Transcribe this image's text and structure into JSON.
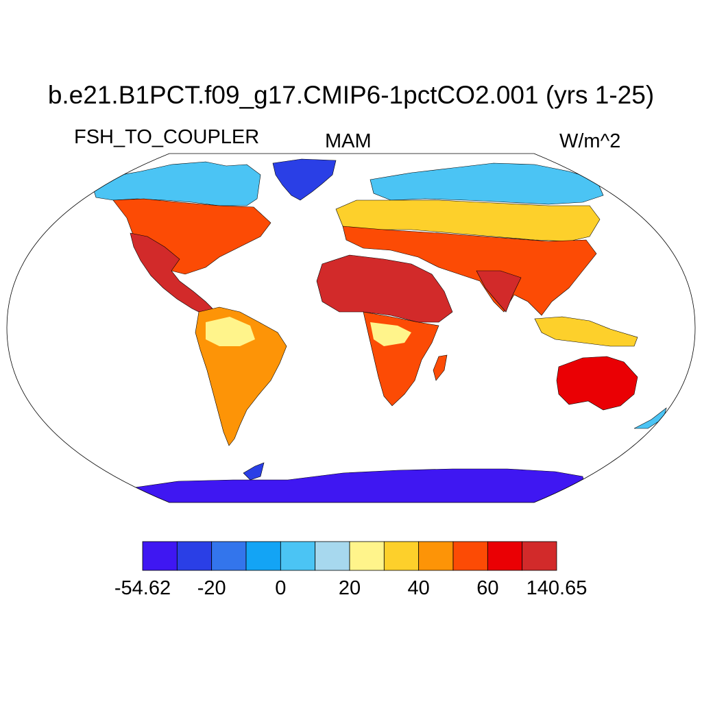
{
  "title": "b.e21.B1PCT.f09_g17.CMIP6-1pctCO2.001 (yrs 1-25)",
  "variable": "FSH_TO_COUPLER",
  "season": "MAM",
  "units": "W/m^2",
  "colorbar": {
    "colors": [
      "#3f17f2",
      "#2a3fe6",
      "#3375ec",
      "#13a4f5",
      "#4bc4f4",
      "#a7d8ee",
      "#fff48b",
      "#fdd02b",
      "#fd9407",
      "#fc4b05",
      "#ea0004",
      "#d22a2a"
    ],
    "labels": [
      "-54.62",
      "-20",
      "0",
      "20",
      "40",
      "60",
      "140.65"
    ]
  },
  "map": {
    "projection": "Robinson",
    "ocean_color": "#ffffff",
    "outline_color": "#000000"
  }
}
